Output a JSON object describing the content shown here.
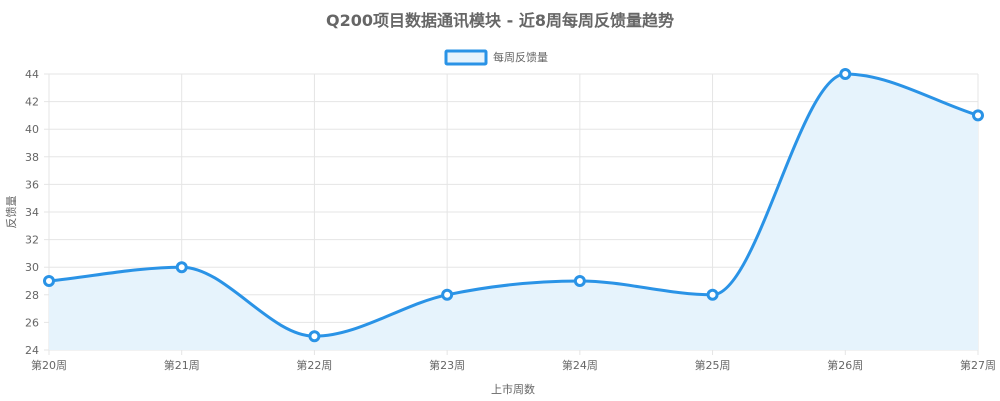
{
  "chart_data": {
    "type": "area",
    "title": "Q200项目数据通讯模块 - 近8周每周反馈量趋势",
    "xlabel": "上市周数",
    "ylabel": "反馈量",
    "categories": [
      "第20周",
      "第21周",
      "第22周",
      "第23周",
      "第24周",
      "第25周",
      "第26周",
      "第27周"
    ],
    "series": [
      {
        "name": "每周反馈量",
        "values": [
          29,
          30,
          25,
          28,
          29,
          28,
          44,
          41
        ]
      }
    ],
    "ylim": [
      24,
      44
    ],
    "yticks": [
      24,
      26,
      28,
      30,
      32,
      34,
      36,
      38,
      40,
      42,
      44
    ],
    "grid": true,
    "legend": "top-center",
    "colors": {
      "line": "#2a93e6",
      "fill": "#e6f3fc",
      "grid": "#e5e5e5"
    }
  }
}
